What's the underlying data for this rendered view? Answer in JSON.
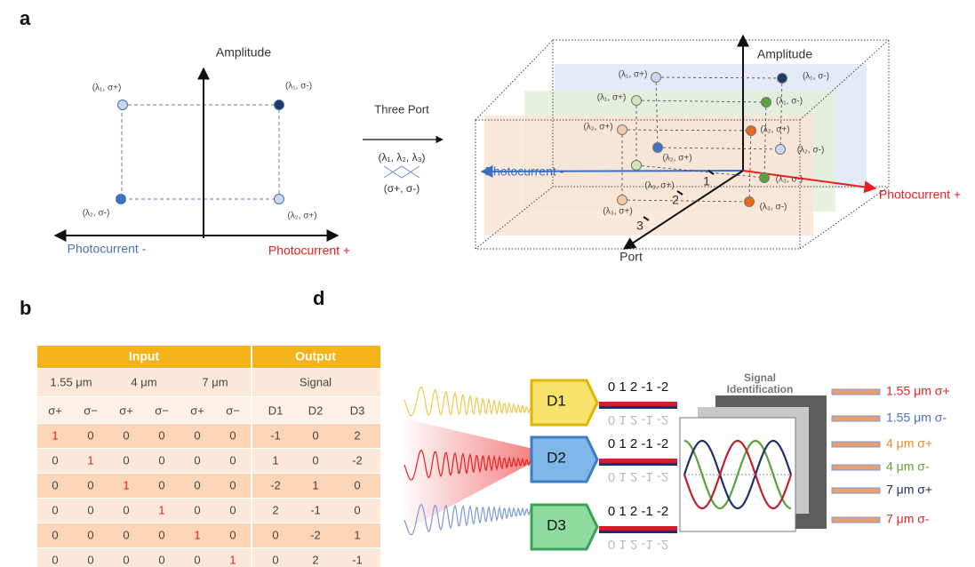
{
  "panels": {
    "a": "a",
    "b": "b",
    "d": "d"
  },
  "a_left": {
    "amplitude": "Amplitude",
    "photocurrent_minus": "Photocurrent -",
    "photocurrent_plus": "Photocurrent +",
    "points": [
      "(λ₁, σ+)",
      "(λ₁, σ-)",
      "(λ₂, σ-)",
      "(λ₂, σ+)"
    ]
  },
  "a_middle": {
    "title": "Three Port",
    "wavelengths": "(λ₁, λ₂, λ₃)",
    "polarizations": "(σ+, σ-)"
  },
  "a_right": {
    "amplitude": "Amplitude",
    "photocurrent_minus": "Photocurrent -",
    "photocurrent_plus": "Photocurrent +",
    "port": "Port",
    "port_ticks": [
      "1",
      "2",
      "3"
    ],
    "points": [
      "(λ₁, σ+)",
      "(λ₁, σ-)",
      "(λ₁, σ+)",
      "(λ₁, σ-)",
      "(λ₂, σ+)",
      "(λ₂, σ+)",
      "(λ₂, σ-)",
      "(λ₂, σ+)",
      "(λ₃, σ+)",
      "(λ₃, σ-)",
      "(λ₃, σ+)",
      "(λ₃, σ-)"
    ]
  },
  "table": {
    "header": [
      "Input",
      "Output"
    ],
    "groups": [
      "1.55 μm",
      "4 μm",
      "7 μm",
      "Signal"
    ],
    "columns": [
      "σ+",
      "σ−",
      "σ+",
      "σ−",
      "σ+",
      "σ−",
      "D1",
      "D2",
      "D3"
    ],
    "rows": [
      [
        1,
        0,
        0,
        0,
        0,
        0,
        -1,
        0,
        2
      ],
      [
        0,
        1,
        0,
        0,
        0,
        0,
        1,
        0,
        -2
      ],
      [
        0,
        0,
        1,
        0,
        0,
        0,
        -2,
        1,
        0
      ],
      [
        0,
        0,
        0,
        1,
        0,
        0,
        2,
        -1,
        0
      ],
      [
        0,
        0,
        0,
        0,
        1,
        0,
        0,
        -2,
        1
      ],
      [
        0,
        0,
        0,
        0,
        0,
        1,
        0,
        2,
        -1
      ]
    ]
  },
  "d": {
    "detectors": [
      {
        "name": "D1",
        "scale": "0 1 2 -1 -2"
      },
      {
        "name": "D2",
        "scale": "0 1 2 -1 -2"
      },
      {
        "name": "D3",
        "scale": "0 1 2 -1 -2"
      }
    ],
    "identification": [
      "Signal",
      "Identification"
    ],
    "outputs": [
      "1.55 μm σ+",
      "1.55 μm σ-",
      "4 μm σ+",
      "4 μm σ-",
      "7 μm σ+",
      "7 μm σ-"
    ]
  }
}
